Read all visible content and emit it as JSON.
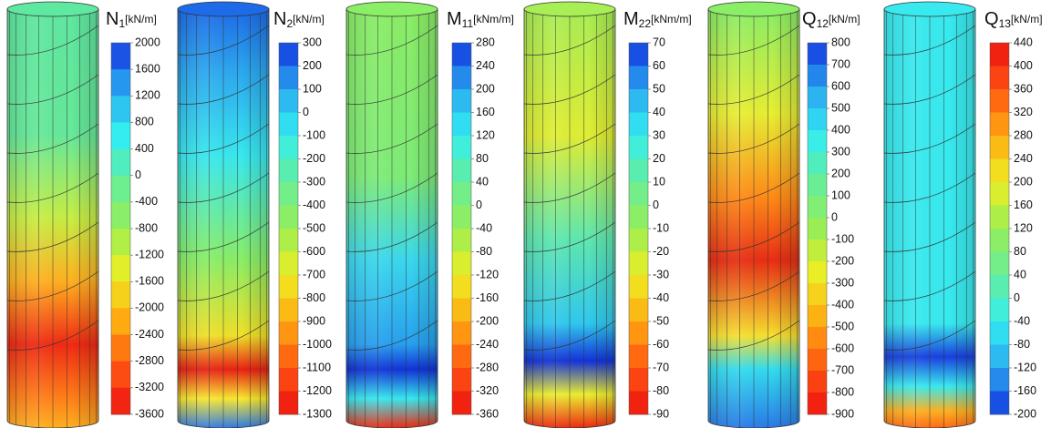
{
  "chart_data": [
    {
      "type": "contour",
      "title": "N",
      "subscript": "1",
      "unit": "[kN/m]",
      "ylim": [
        -3600,
        2000
      ],
      "yticks": [
        2000,
        1600,
        1200,
        800,
        400,
        0,
        -400,
        -800,
        -1200,
        -1600,
        -2000,
        -2400,
        -2800,
        -3200,
        -3600
      ],
      "colormap": [
        "#1433e0",
        "#29a8f0",
        "#33eef0",
        "#66ee99",
        "#99ee55",
        "#eeee22",
        "#ffaa11",
        "#ff5511",
        "#ee1111"
      ]
    },
    {
      "type": "contour",
      "title": "N",
      "subscript": "2",
      "unit": "[kN/m]",
      "ylim": [
        -1300,
        300
      ],
      "yticks": [
        300,
        200,
        100,
        0,
        -100,
        -200,
        -300,
        -400,
        -500,
        -600,
        -700,
        -800,
        -900,
        -1000,
        -1100,
        -1200,
        -1300
      ],
      "colormap": [
        "#1433e0",
        "#29a8f0",
        "#33eef0",
        "#66ee99",
        "#99ee55",
        "#eeee22",
        "#ffaa11",
        "#ff5511",
        "#ee1111"
      ]
    },
    {
      "type": "contour",
      "title": "M",
      "subscript": "11",
      "unit": "[kNm/m]",
      "ylim": [
        -360,
        280
      ],
      "yticks": [
        280,
        240,
        200,
        160,
        120,
        80,
        40,
        0,
        -40,
        -80,
        -120,
        -160,
        -200,
        -240,
        -280,
        -320,
        -360
      ],
      "colormap": [
        "#1433e0",
        "#29a8f0",
        "#33eef0",
        "#66ee99",
        "#99ee55",
        "#eeee22",
        "#ffaa11",
        "#ff5511",
        "#ee1111"
      ]
    },
    {
      "type": "contour",
      "title": "M",
      "subscript": "22",
      "unit": "[kNm/m]",
      "ylim": [
        -90,
        70
      ],
      "yticks": [
        70,
        60,
        50,
        40,
        30,
        20,
        10,
        0,
        -10,
        -20,
        -30,
        -40,
        -50,
        -60,
        -70,
        -80,
        -90
      ],
      "colormap": [
        "#1433e0",
        "#29a8f0",
        "#33eef0",
        "#66ee99",
        "#99ee55",
        "#eeee22",
        "#ffaa11",
        "#ff5511",
        "#ee1111"
      ]
    },
    {
      "type": "contour",
      "title": "Q",
      "subscript": "12",
      "unit": "[kN/m]",
      "ylim": [
        -900,
        800
      ],
      "yticks": [
        800,
        700,
        600,
        500,
        400,
        300,
        200,
        100,
        0,
        -100,
        -200,
        -300,
        -400,
        -500,
        -600,
        -700,
        -800,
        -900
      ],
      "colormap": [
        "#1433e0",
        "#29a8f0",
        "#33eef0",
        "#66ee99",
        "#99ee55",
        "#eeee22",
        "#ffaa11",
        "#ff5511",
        "#ee1111"
      ]
    },
    {
      "type": "contour",
      "title": "Q",
      "subscript": "13",
      "unit": "[kN/m]",
      "ylim": [
        -200,
        440
      ],
      "yticks": [
        440,
        400,
        360,
        320,
        280,
        240,
        200,
        160,
        120,
        80,
        40,
        0,
        -40,
        -80,
        -120,
        -160,
        -200
      ],
      "colormap": [
        "#ee1111",
        "#ff5511",
        "#ffaa11",
        "#eeee22",
        "#99ee55",
        "#66ee99",
        "#33eef0",
        "#29a8f0",
        "#1433e0"
      ]
    }
  ]
}
